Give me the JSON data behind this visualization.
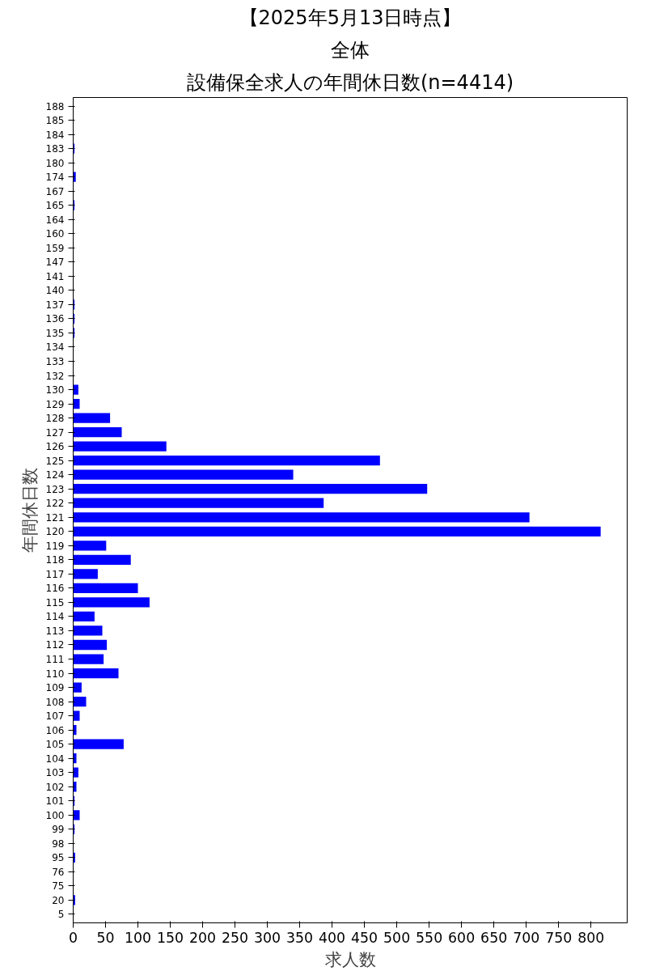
{
  "chart_data": {
    "type": "bar",
    "orientation": "horizontal",
    "title": "設備保全求人の年間休日数(n=4414)",
    "subtitle": "全体",
    "annotations": [
      "【2025年5月13日時点】"
    ],
    "xlabel": "求人数",
    "ylabel": "年間休日数",
    "categories": [
      "188",
      "185",
      "184",
      "183",
      "180",
      "174",
      "167",
      "165",
      "164",
      "160",
      "159",
      "147",
      "141",
      "140",
      "137",
      "136",
      "135",
      "134",
      "133",
      "132",
      "130",
      "129",
      "128",
      "127",
      "126",
      "125",
      "124",
      "123",
      "122",
      "121",
      "120",
      "119",
      "118",
      "117",
      "116",
      "115",
      "114",
      "113",
      "112",
      "111",
      "110",
      "109",
      "108",
      "107",
      "106",
      "105",
      "104",
      "103",
      "102",
      "101",
      "100",
      "99",
      "98",
      "95",
      "76",
      "75",
      "20",
      "5"
    ],
    "values": [
      0,
      0,
      0,
      2,
      0,
      4,
      0,
      2,
      0,
      0,
      0,
      0,
      0,
      0,
      2,
      2,
      2,
      0,
      0,
      0,
      8,
      10,
      57,
      75,
      144,
      474,
      340,
      547,
      387,
      705,
      815,
      51,
      89,
      38,
      100,
      118,
      33,
      45,
      52,
      47,
      70,
      13,
      20,
      10,
      5,
      78,
      5,
      8,
      5,
      2,
      10,
      2,
      0,
      3,
      0,
      0,
      3,
      0
    ],
    "color": "#0000ff",
    "xlim": [
      0,
      856
    ],
    "xticks": [
      0,
      50,
      100,
      150,
      200,
      250,
      300,
      350,
      400,
      450,
      500,
      550,
      600,
      650,
      700,
      750,
      800
    ],
    "grid": false
  }
}
